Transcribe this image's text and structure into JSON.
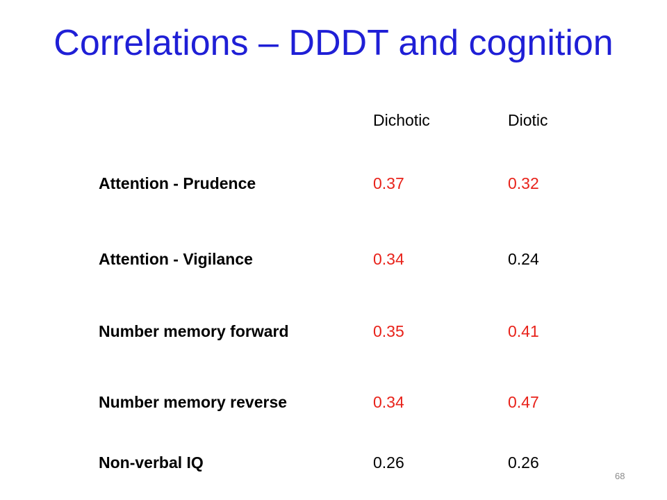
{
  "slide": {
    "title": "Correlations – DDDT and cognition",
    "page_number": "68"
  },
  "table": {
    "headers": [
      "Dichotic",
      "Diotic"
    ],
    "rows": [
      {
        "label": "Attention - Prudence",
        "dichotic": "0.37",
        "diotic": "0.32",
        "dichotic_color": "#e8221a",
        "diotic_color": "#e8221a"
      },
      {
        "label": "Attention - Vigilance",
        "dichotic": "0.34",
        "diotic": "0.24",
        "dichotic_color": "#e8221a",
        "diotic_color": "#000000"
      },
      {
        "label": "Number memory forward",
        "dichotic": "0.35",
        "diotic": "0.41",
        "dichotic_color": "#e8221a",
        "diotic_color": "#e8221a"
      },
      {
        "label": "Number memory reverse",
        "dichotic": "0.34",
        "diotic": "0.47",
        "dichotic_color": "#e8221a",
        "diotic_color": "#e8221a"
      },
      {
        "label": "Non-verbal IQ",
        "dichotic": "0.26",
        "diotic": "0.26",
        "dichotic_color": "#000000",
        "diotic_color": "#000000"
      }
    ]
  },
  "colors": {
    "title": "#1f1fd6",
    "significant": "#e8221a",
    "text": "#000000"
  }
}
